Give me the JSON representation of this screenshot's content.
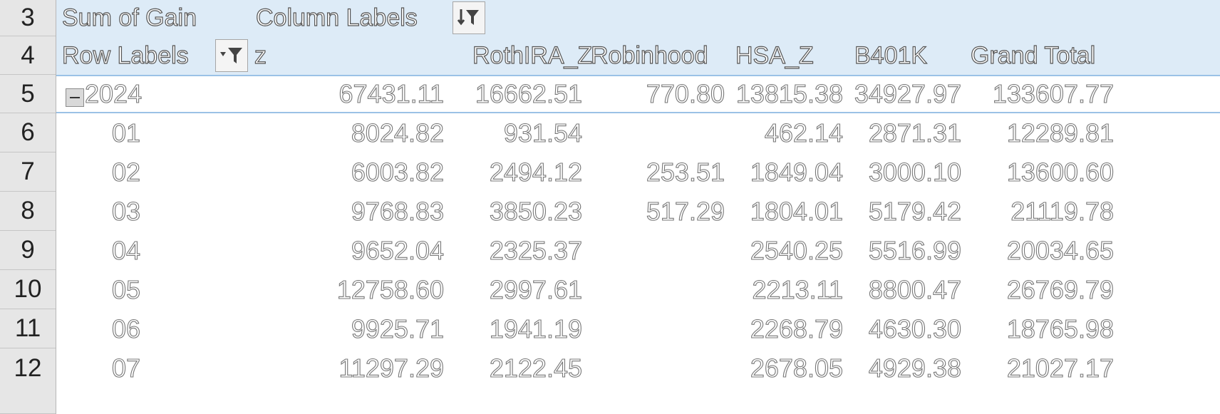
{
  "row_numbers": [
    "3",
    "4",
    "5",
    "6",
    "7",
    "8",
    "9",
    "10",
    "11",
    "12"
  ],
  "pivot": {
    "value_label": "Sum of Gain",
    "column_labels": "Column Labels",
    "row_labels": "Row Labels",
    "columns": [
      "z",
      "RothIRA_Z",
      "Robinhood",
      "HSA_Z",
      "B401K",
      "Grand Total"
    ],
    "year": {
      "label": "2024",
      "values": [
        "67431.11",
        "16662.51",
        "770.80",
        "13815.38",
        "34927.97",
        "133607.77"
      ]
    },
    "months": [
      {
        "label": "01",
        "values": [
          "8024.82",
          "931.54",
          "",
          "462.14",
          "2871.31",
          "12289.81"
        ]
      },
      {
        "label": "02",
        "values": [
          "6003.82",
          "2494.12",
          "253.51",
          "1849.04",
          "3000.10",
          "13600.60"
        ]
      },
      {
        "label": "03",
        "values": [
          "9768.83",
          "3850.23",
          "517.29",
          "1804.01",
          "5179.42",
          "21119.78"
        ]
      },
      {
        "label": "04",
        "values": [
          "9652.04",
          "2325.37",
          "",
          "2540.25",
          "5516.99",
          "20034.65"
        ]
      },
      {
        "label": "05",
        "values": [
          "12758.60",
          "2997.61",
          "",
          "2213.11",
          "8800.47",
          "26769.79"
        ]
      },
      {
        "label": "06",
        "values": [
          "9925.71",
          "1941.19",
          "",
          "2268.79",
          "4630.30",
          "18765.98"
        ]
      },
      {
        "label": "07",
        "values": [
          "11297.29",
          "2122.45",
          "",
          "2678.05",
          "4929.38",
          "21027.17"
        ]
      }
    ]
  }
}
